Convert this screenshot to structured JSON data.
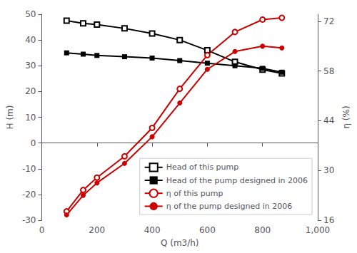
{
  "chart_data": {
    "type": "line",
    "xlabel": "Q (m3/h)",
    "ylabel": "H (m)",
    "y2label": "η (%)",
    "x": [
      90,
      150,
      200,
      300,
      400,
      500,
      600,
      700,
      800,
      870
    ],
    "xlim": [
      0,
      1000
    ],
    "xticks": [
      0,
      200,
      400,
      600,
      800,
      1000
    ],
    "ylim": [
      -30,
      50
    ],
    "yticks": [
      -30,
      -20,
      -10,
      0,
      10,
      20,
      30,
      40,
      50
    ],
    "y2lim": [
      16,
      74
    ],
    "y2ticks": [
      16,
      30,
      44,
      58,
      72
    ],
    "grid": false,
    "legend": "lower right",
    "series": [
      {
        "name": "Head of this pump",
        "color": "#000000",
        "marker": "square-open",
        "values": [
          47.5,
          46.5,
          46.0,
          44.5,
          42.5,
          40.0,
          36.0,
          31.5,
          28.5,
          27.0
        ]
      },
      {
        "name": "Head of the pump designed in 2006",
        "color": "#000000",
        "marker": "square",
        "values": [
          35.0,
          34.5,
          34.0,
          33.5,
          33.0,
          32.0,
          31.0,
          30.0,
          29.0,
          27.5
        ]
      },
      {
        "name": "η of this pump",
        "color": "#cc0000",
        "marker": "circle-open",
        "axis": "y2",
        "values": [
          18.5,
          24.5,
          28.0,
          34.0,
          42.0,
          53.0,
          62.5,
          69.0,
          72.5,
          73.0
        ]
      },
      {
        "name": "η of the pump designed in 2006",
        "color": "#cc0000",
        "marker": "circle",
        "axis": "y2",
        "values": [
          17.5,
          23.0,
          26.5,
          32.0,
          39.5,
          49.0,
          58.5,
          63.5,
          65.0,
          64.5
        ]
      }
    ]
  }
}
